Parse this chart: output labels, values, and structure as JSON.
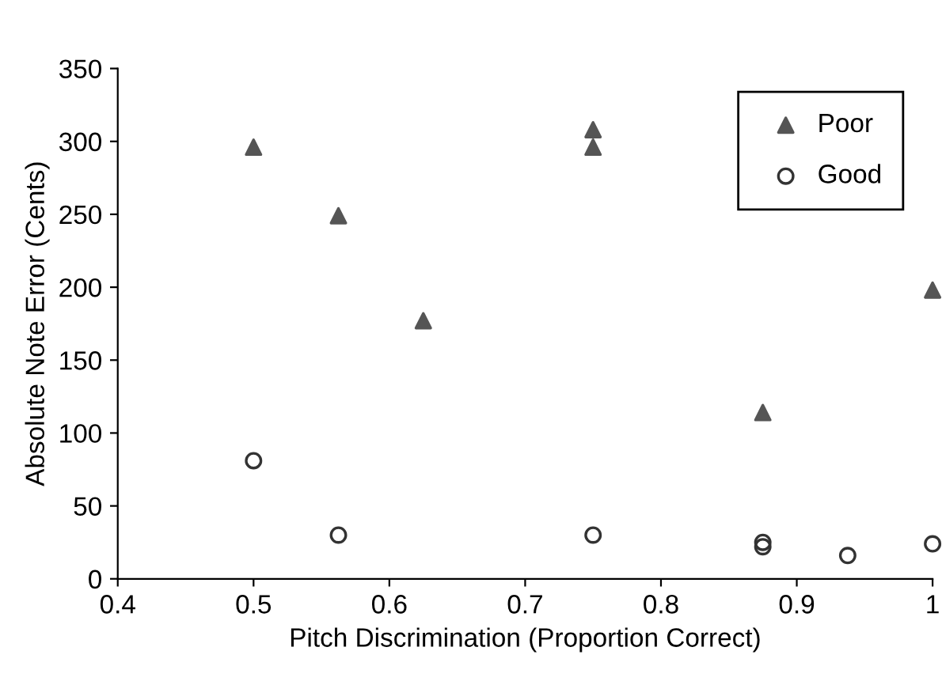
{
  "chart_data": {
    "type": "scatter",
    "xlabel": "Pitch Discrimination (Proportion Correct)",
    "ylabel": "Absolute Note Error (Cents)",
    "xlim": [
      0.4,
      1
    ],
    "xticks": [
      0.4,
      0.5,
      0.6,
      0.7,
      0.8,
      0.9,
      1
    ],
    "ylim": [
      0,
      350
    ],
    "yticks": [
      0,
      50,
      100,
      150,
      200,
      250,
      300,
      350
    ],
    "grid": false,
    "legend": "top right",
    "series": [
      {
        "name": "Poor",
        "color": "#555555",
        "marker": "triangle",
        "x": [
          0.5,
          0.5625,
          0.625,
          0.75,
          0.75,
          0.875,
          1.0
        ],
        "values": [
          296,
          249,
          177,
          308,
          296,
          114,
          198
        ]
      },
      {
        "name": "Good",
        "color": "#333333",
        "marker": "circle",
        "x": [
          0.5,
          0.5625,
          0.75,
          0.875,
          0.875,
          0.9375,
          1.0
        ],
        "values": [
          81,
          30,
          30,
          25,
          22,
          16,
          24
        ]
      }
    ]
  }
}
